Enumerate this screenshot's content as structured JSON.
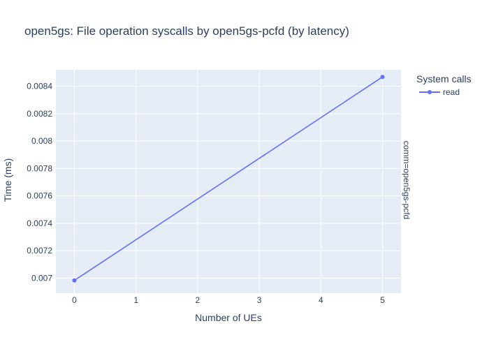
{
  "chart_data": {
    "type": "line",
    "title": "open5gs: File operation syscalls by open5gs-pcfd (by latency)",
    "xlabel": "Number of UEs",
    "ylabel": "Time (ms)",
    "legend_title": "System calls",
    "legend_position": "top-right",
    "facet_label": "comm=open5gs-pcfd",
    "grid": true,
    "xlim": [
      -0.3,
      5.3
    ],
    "ylim": [
      0.00689,
      0.00852
    ],
    "x_ticks": [
      0,
      1,
      2,
      3,
      4,
      5
    ],
    "x_tick_labels": [
      "0",
      "1",
      "2",
      "3",
      "4",
      "5"
    ],
    "y_ticks": [
      0.007,
      0.0072,
      0.0074,
      0.0076,
      0.0078,
      0.008,
      0.0082,
      0.0084
    ],
    "y_tick_labels": [
      "0.007",
      "0.0072",
      "0.0074",
      "0.0076",
      "0.0078",
      "0.008",
      "0.0082",
      "0.0084"
    ],
    "series": [
      {
        "name": "read",
        "color": "#636efa",
        "x": [
          0,
          5
        ],
        "y": [
          0.006983,
          0.008468
        ]
      }
    ]
  },
  "colors": {
    "plot_bg": "#e5ecf6",
    "grid": "#ffffff",
    "text": "#2a3f5f"
  }
}
